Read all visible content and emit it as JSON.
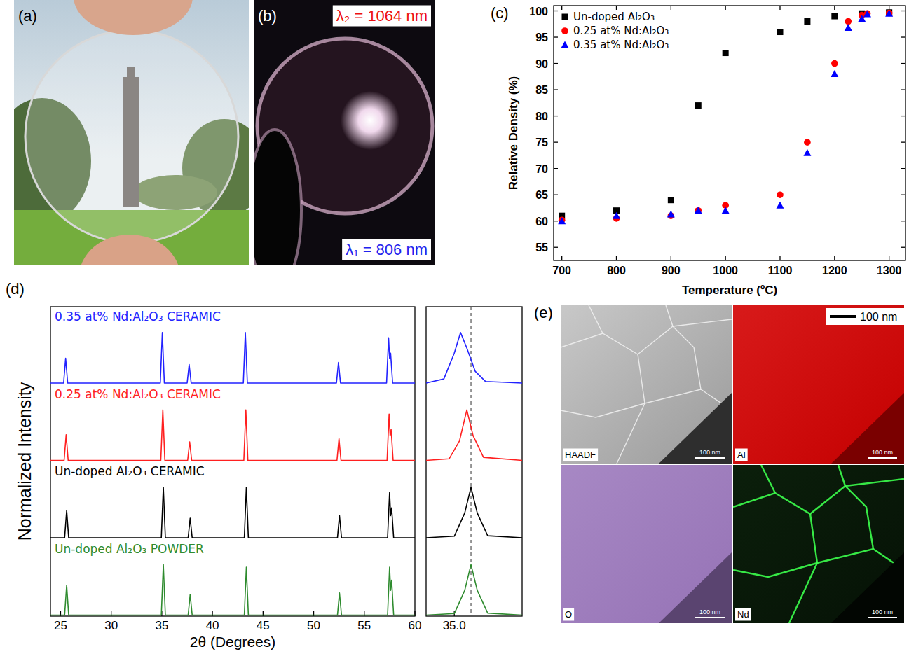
{
  "figure": {
    "letters": [
      "(a)",
      "(b)",
      "(c)",
      "(d)",
      "(e)"
    ],
    "b": {
      "annotations": [
        "λ₂ = 1064 nm",
        "λ₁ = 806 nm"
      ]
    },
    "e": {
      "scale_bar": "100 nm",
      "maps": [
        {
          "label": "HAADF",
          "scale": "100 nm"
        },
        {
          "label": "Al",
          "scale": "100 nm"
        },
        {
          "label": "O",
          "scale": "100 nm"
        },
        {
          "label": "Nd",
          "scale": "100 nm"
        }
      ]
    }
  },
  "chart_data": [
    {
      "type": "scatter",
      "x_label": "Temperature (ºC)",
      "y_label": "Relative Density (%)",
      "xlim": [
        685,
        1330
      ],
      "xticks": [
        700,
        800,
        900,
        1000,
        1100,
        1200,
        1300
      ],
      "ylim": [
        52.5,
        101
      ],
      "yticks": [
        55,
        60,
        65,
        70,
        75,
        80,
        85,
        90,
        95,
        100
      ],
      "legend": "upper left",
      "series": [
        {
          "name": "Un-doped Al₂O₃",
          "color": "#000000",
          "marker": "square",
          "x": [
            700,
            800,
            900,
            950,
            1000,
            1100,
            1150,
            1200,
            1250,
            1300
          ],
          "values": [
            61,
            62,
            64,
            82,
            92,
            96,
            98,
            99,
            99.5,
            99.7
          ]
        },
        {
          "name": "0.25 at% Nd:Al₂O₃",
          "color": "#ff0000",
          "marker": "circle",
          "x": [
            700,
            800,
            900,
            950,
            1000,
            1100,
            1150,
            1200,
            1225,
            1250,
            1260,
            1300
          ],
          "values": [
            60.2,
            60.5,
            61,
            62,
            63,
            65,
            75,
            90,
            98,
            99.2,
            99.5,
            99.6
          ]
        },
        {
          "name": "0.35 at% Nd:Al₂O₃",
          "color": "#0000ff",
          "marker": "triangle",
          "x": [
            700,
            800,
            900,
            950,
            1000,
            1100,
            1150,
            1200,
            1225,
            1250,
            1260,
            1300
          ],
          "values": [
            60,
            61,
            61.3,
            62,
            62,
            63,
            73,
            88,
            96.8,
            98.5,
            99.4,
            99.5
          ]
        }
      ]
    },
    {
      "type": "line",
      "x_label": "2θ (Degrees)",
      "y_label": "Normalized Intensity",
      "xlim": [
        24,
        60
      ],
      "xticks": [
        25,
        30,
        35,
        40,
        45,
        50,
        55,
        60
      ],
      "ylim": [
        0,
        1.5
      ],
      "tick_labels": "x",
      "series": [
        {
          "name": "0.35 at% Nd:Al₂O₃ CERAMIC",
          "color": "#2222ff",
          "x": [
            24,
            25.3,
            25.5,
            25.7,
            34.85,
            35.05,
            35.25,
            37.5,
            37.7,
            37.9,
            43.05,
            43.25,
            43.45,
            52.25,
            52.45,
            52.65,
            57.2,
            57.4,
            57.5,
            57.6,
            57.8,
            60
          ],
          "values": [
            0.02,
            0.02,
            0.5,
            0.02,
            0.02,
            1.0,
            0.02,
            0.02,
            0.38,
            0.02,
            0.02,
            1.0,
            0.02,
            0.02,
            0.42,
            0.02,
            0.02,
            0.9,
            0.5,
            0.6,
            0.02,
            0.02
          ]
        },
        {
          "name": "0.25 at% Nd:Al₂O₃ CERAMIC",
          "color": "#ff2020",
          "x": [
            24,
            25.35,
            25.55,
            25.75,
            34.9,
            35.1,
            35.3,
            37.55,
            37.75,
            37.95,
            43.1,
            43.3,
            43.5,
            52.3,
            52.5,
            52.7,
            57.25,
            57.45,
            57.55,
            57.65,
            57.85,
            60
          ],
          "values": [
            0.02,
            0.02,
            0.52,
            0.02,
            0.02,
            1.0,
            0.02,
            0.02,
            0.38,
            0.02,
            0.02,
            1.0,
            0.02,
            0.02,
            0.44,
            0.02,
            0.02,
            0.92,
            0.5,
            0.62,
            0.02,
            0.02
          ]
        },
        {
          "name": "Un-doped Al₂O₃ CERAMIC",
          "color": "#000000",
          "x": [
            24,
            25.4,
            25.6,
            25.8,
            34.95,
            35.15,
            35.35,
            37.6,
            37.8,
            38.0,
            43.15,
            43.35,
            43.55,
            52.35,
            52.55,
            52.75,
            57.3,
            57.5,
            57.6,
            57.7,
            57.9,
            60
          ],
          "values": [
            0.02,
            0.02,
            0.55,
            0.02,
            0.02,
            1.0,
            0.02,
            0.02,
            0.4,
            0.02,
            0.02,
            1.0,
            0.02,
            0.02,
            0.45,
            0.02,
            0.02,
            0.9,
            0.45,
            0.6,
            0.02,
            0.02
          ]
        },
        {
          "name": "Un-doped Al₂O₃ POWDER",
          "color": "#2e8b2e",
          "x": [
            24,
            25.4,
            25.6,
            25.8,
            34.95,
            35.15,
            35.35,
            37.6,
            37.8,
            38.0,
            43.15,
            43.35,
            43.55,
            52.35,
            52.55,
            52.75,
            57.3,
            57.5,
            57.6,
            57.7,
            57.9,
            60
          ],
          "values": [
            0.02,
            0.02,
            0.6,
            0.02,
            0.02,
            1.0,
            0.02,
            0.02,
            0.42,
            0.02,
            0.02,
            0.95,
            0.02,
            0.02,
            0.45,
            0.02,
            0.02,
            0.95,
            0.5,
            0.7,
            0.02,
            0.02
          ]
        }
      ]
    },
    {
      "type": "line",
      "xlim": [
        34.73,
        35.65
      ],
      "xticks": [
        {
          "value": 35.0,
          "label": "35.0"
        }
      ],
      "ylim": [
        0,
        1.5
      ],
      "tick_labels": "x",
      "vline": 35.16,
      "series": [
        {
          "color": "#2222ff",
          "x": [
            34.73,
            34.9,
            35.0,
            35.06,
            35.12,
            35.2,
            35.3,
            35.65
          ],
          "values": [
            0.02,
            0.1,
            0.6,
            1.0,
            0.7,
            0.25,
            0.05,
            0.02
          ]
        },
        {
          "color": "#ff2020",
          "x": [
            34.73,
            34.95,
            35.05,
            35.12,
            35.18,
            35.28,
            35.65
          ],
          "values": [
            0.02,
            0.05,
            0.4,
            1.0,
            0.5,
            0.08,
            0.02
          ]
        },
        {
          "color": "#000000",
          "x": [
            34.73,
            35.0,
            35.1,
            35.16,
            35.22,
            35.32,
            35.65
          ],
          "values": [
            0.02,
            0.05,
            0.5,
            1.0,
            0.5,
            0.06,
            0.02
          ]
        },
        {
          "color": "#2e8b2e",
          "x": [
            34.73,
            35.0,
            35.1,
            35.16,
            35.22,
            35.32,
            35.65
          ],
          "values": [
            0.02,
            0.05,
            0.5,
            1.0,
            0.5,
            0.06,
            0.02
          ]
        }
      ]
    }
  ]
}
